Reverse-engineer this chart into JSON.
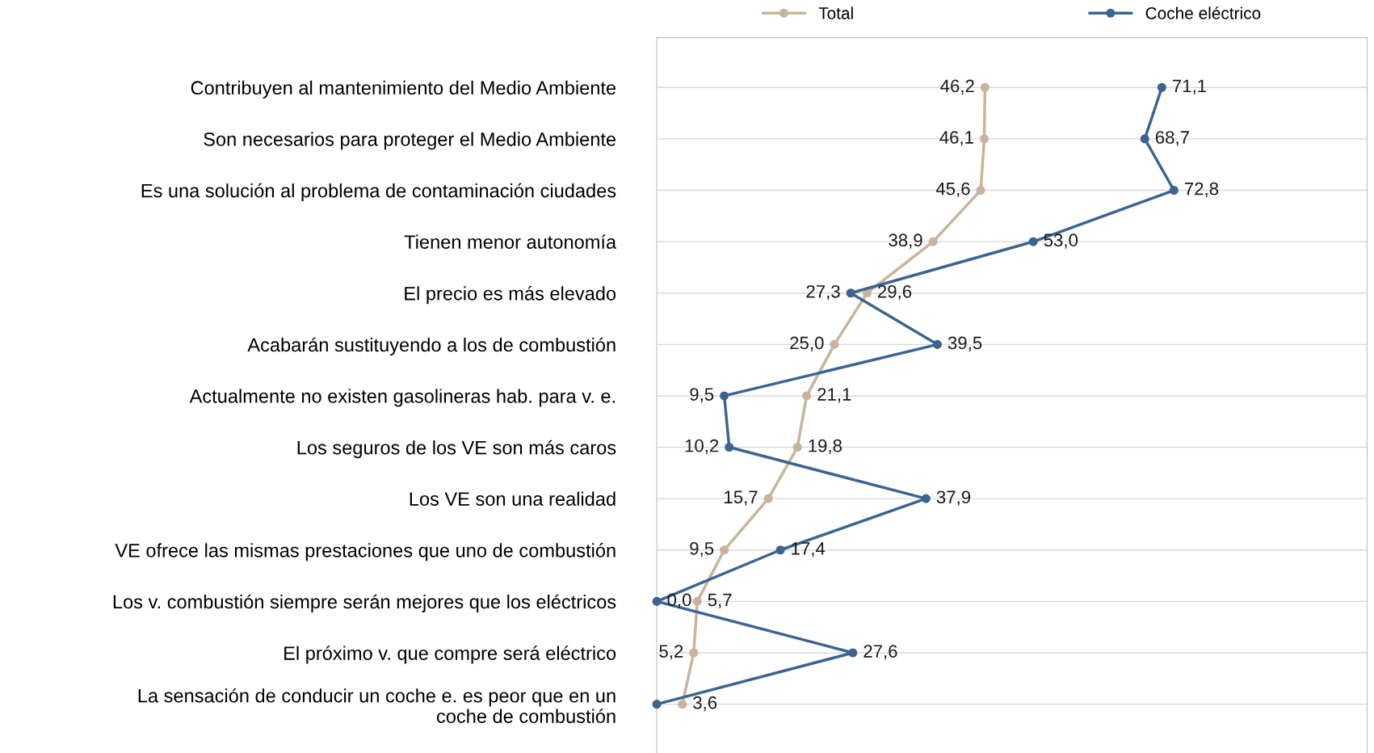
{
  "chart_data": {
    "type": "line",
    "orientation": "horizontal",
    "xlim": [
      0,
      100
    ],
    "categories": [
      "Contribuyen al mantenimiento del Medio Ambiente",
      "Son necesarios para proteger el Medio Ambiente",
      "Es una solución al problema de contaminación ciudades",
      "Tienen menor autonomía",
      "El precio es más elevado",
      "Acabarán sustituyendo a los de combustión",
      "Actualmente no existen gasolineras hab. para v. e.",
      "Los seguros de los VE son más caros",
      "Los VE son una realidad",
      "VE ofrece las mismas prestaciones que uno de combustión",
      "Los v. combustión siempre serán mejores que los eléctricos",
      "El próximo v. que compre será eléctrico",
      "La sensación de conducir un coche e. es peor que en un\ncoche de combustión"
    ],
    "series": [
      {
        "name": "Total",
        "color": "#c8b49c",
        "values": [
          46.2,
          46.1,
          45.6,
          38.9,
          29.6,
          25.0,
          21.1,
          19.8,
          15.7,
          9.5,
          5.7,
          5.2,
          3.6
        ],
        "value_labels": [
          "46,2",
          "46,1",
          "45,6",
          "38,9",
          "29,6",
          "25,0",
          "21,1",
          "19,8",
          "15,7",
          "9,5",
          "5,7",
          "5,2",
          "3,6"
        ]
      },
      {
        "name": "Coche eléctrico",
        "color": "#3d6491",
        "values": [
          71.1,
          68.7,
          72.8,
          53.0,
          27.3,
          39.5,
          9.5,
          10.2,
          37.9,
          17.4,
          0.0,
          27.6,
          0.0
        ],
        "value_labels": [
          "71,1",
          "68,7",
          "72,8",
          "53,0",
          "27,3",
          "39,5",
          "9,5",
          "10,2",
          "37,9",
          "17,4",
          "0,0",
          "27,6",
          null
        ]
      }
    ],
    "marker": "circle",
    "line_style": "solid",
    "grid": "y",
    "legend": "top",
    "tick_labels": "y"
  }
}
